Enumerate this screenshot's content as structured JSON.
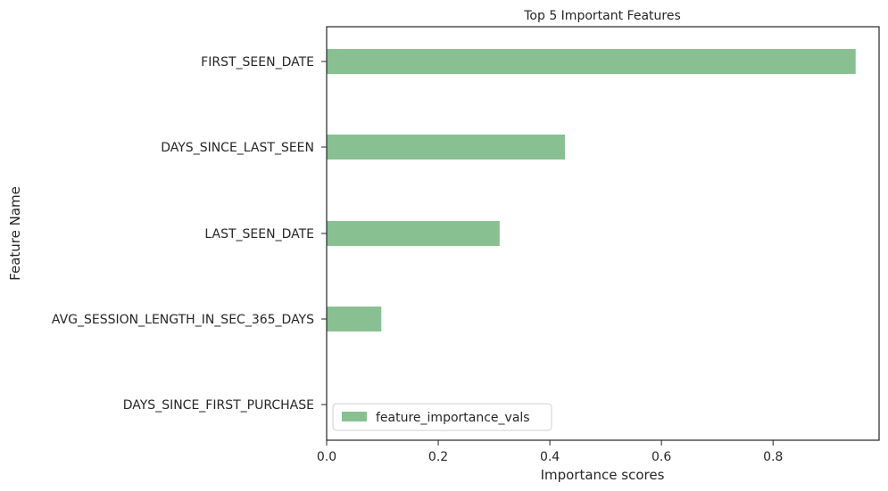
{
  "chart_data": {
    "type": "bar",
    "orientation": "horizontal",
    "title": "Top 5 Important Features",
    "xlabel": "Importance scores",
    "ylabel": "Feature Name",
    "categories": [
      "FIRST_SEEN_DATE",
      "DAYS_SINCE_LAST_SEEN",
      "LAST_SEEN_DATE",
      "AVG_SESSION_LENGTH_IN_SEC_365_DAYS",
      "DAYS_SINCE_FIRST_PURCHASE"
    ],
    "series": [
      {
        "name": "feature_importance_vals",
        "values": [
          0.948,
          0.427,
          0.31,
          0.098,
          0.0
        ],
        "color": "#88c092"
      }
    ],
    "xlim": [
      0,
      0.99
    ],
    "xticks": [
      0.0,
      0.2,
      0.4,
      0.6,
      0.8
    ],
    "xtick_labels": [
      "0.0",
      "0.2",
      "0.4",
      "0.6",
      "0.8"
    ],
    "grid": false,
    "legend_position": "lower-left"
  }
}
